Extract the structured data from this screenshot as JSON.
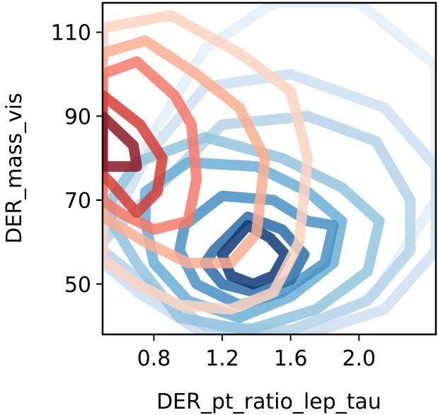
{
  "chart_data": {
    "type": "contour",
    "title": "",
    "xlabel": "DER_pt_ratio_lep_tau",
    "ylabel": "DER_mass_vis",
    "xlim": [
      0.5,
      2.45
    ],
    "ylim": [
      38,
      117
    ],
    "xticks": [
      {
        "value": 0.8,
        "label": "0.8"
      },
      {
        "value": 1.2,
        "label": "1.2"
      },
      {
        "value": 1.6,
        "label": "1.6"
      },
      {
        "value": 2.0,
        "label": "2.0"
      }
    ],
    "yticks": [
      {
        "value": 50,
        "label": "50"
      },
      {
        "value": 70,
        "label": "70"
      },
      {
        "value": 90,
        "label": "90"
      },
      {
        "value": 110,
        "label": "110"
      }
    ],
    "grid": false,
    "legend": "none",
    "series": [
      {
        "colormap": "Blues",
        "contours": [
          {
            "level": 1,
            "color": "#e4eef8",
            "points": [
              [
                0.5,
                62
              ],
              [
                0.8,
                86
              ],
              [
                1.1,
                106
              ],
              [
                1.5,
                117
              ],
              [
                2.0,
                117
              ],
              [
                2.45,
                102
              ],
              [
                2.45,
                70
              ],
              [
                2.1,
                48
              ],
              [
                1.7,
                38
              ],
              [
                1.1,
                38
              ],
              [
                0.7,
                48
              ],
              [
                0.5,
                55
              ]
            ]
          },
          {
            "level": 2,
            "color": "#cfe1f2",
            "points": [
              [
                0.5,
                60
              ],
              [
                0.75,
                80
              ],
              [
                1.1,
                97
              ],
              [
                1.6,
                100
              ],
              [
                2.15,
                92
              ],
              [
                2.45,
                78
              ],
              [
                2.45,
                58
              ],
              [
                2.15,
                44
              ],
              [
                1.7,
                38
              ],
              [
                1.1,
                38
              ],
              [
                0.75,
                47
              ],
              [
                0.5,
                55
              ]
            ]
          },
          {
            "level": 3,
            "color": "#b5d4e9",
            "points": [
              [
                0.5,
                60
              ],
              [
                0.75,
                70
              ],
              [
                1.2,
                88
              ],
              [
                1.7,
                90
              ],
              [
                2.1,
                84
              ],
              [
                2.3,
                70
              ],
              [
                2.3,
                58
              ],
              [
                2.05,
                46
              ],
              [
                1.6,
                39
              ],
              [
                1.1,
                40
              ],
              [
                0.75,
                50
              ],
              [
                0.5,
                58
              ]
            ]
          },
          {
            "level": 4,
            "color": "#93c4de",
            "points": [
              [
                0.55,
                70
              ],
              [
                0.7,
                79
              ],
              [
                1.1,
                85
              ],
              [
                1.55,
                80
              ],
              [
                1.9,
                73
              ],
              [
                2.12,
                65
              ],
              [
                2.05,
                53
              ],
              [
                1.75,
                44
              ],
              [
                1.35,
                39
              ],
              [
                0.95,
                42
              ],
              [
                0.7,
                55
              ],
              [
                0.55,
                65
              ]
            ]
          },
          {
            "level": 5,
            "color": "#6aaed6",
            "points": [
              [
                0.75,
                72
              ],
              [
                1.0,
                79
              ],
              [
                1.4,
                78
              ],
              [
                1.7,
                72
              ],
              [
                1.9,
                65
              ],
              [
                1.85,
                55
              ],
              [
                1.6,
                47
              ],
              [
                1.3,
                42
              ],
              [
                1.0,
                46
              ],
              [
                0.8,
                55
              ],
              [
                0.75,
                65
              ]
            ]
          },
          {
            "level": 6,
            "color": "#4a90c4",
            "points": [
              [
                0.98,
                64
              ],
              [
                1.2,
                71
              ],
              [
                1.5,
                70
              ],
              [
                1.7,
                65
              ],
              [
                1.85,
                64
              ],
              [
                1.8,
                55
              ],
              [
                1.55,
                48
              ],
              [
                1.3,
                45
              ],
              [
                1.05,
                50
              ],
              [
                0.95,
                58
              ]
            ]
          },
          {
            "level": 7,
            "color": "#2e6ca8",
            "points": [
              [
                1.15,
                58
              ],
              [
                1.35,
                66
              ],
              [
                1.55,
                63
              ],
              [
                1.68,
                57
              ],
              [
                1.6,
                51
              ],
              [
                1.4,
                48
              ],
              [
                1.2,
                50
              ],
              [
                1.1,
                55
              ]
            ]
          },
          {
            "level": 8,
            "color": "#0d3b73",
            "points": [
              [
                1.2,
                57
              ],
              [
                1.35,
                64
              ],
              [
                1.48,
                61
              ],
              [
                1.57,
                57
              ],
              [
                1.5,
                52
              ],
              [
                1.38,
                50
              ],
              [
                1.25,
                52
              ]
            ]
          }
        ]
      },
      {
        "colormap": "Reds",
        "contours": [
          {
            "level": 1,
            "color": "#fcd3c1",
            "points": [
              [
                0.5,
                111
              ],
              [
                0.9,
                114
              ],
              [
                1.3,
                105
              ],
              [
                1.6,
                96
              ],
              [
                1.7,
                80
              ],
              [
                1.65,
                60
              ],
              [
                1.5,
                48
              ],
              [
                1.25,
                44
              ],
              [
                0.95,
                45
              ],
              [
                0.7,
                50
              ],
              [
                0.5,
                56
              ]
            ]
          },
          {
            "level": 2,
            "color": "#fcae92",
            "points": [
              [
                0.5,
                105
              ],
              [
                0.75,
                108
              ],
              [
                1.05,
                100
              ],
              [
                1.3,
                92
              ],
              [
                1.45,
                80
              ],
              [
                1.4,
                62
              ],
              [
                1.25,
                55
              ],
              [
                1.0,
                55
              ],
              [
                0.75,
                60
              ],
              [
                0.5,
                66
              ]
            ]
          },
          {
            "level": 3,
            "color": "#f4796b",
            "points": [
              [
                0.5,
                100
              ],
              [
                0.7,
                103
              ],
              [
                0.92,
                95
              ],
              [
                1.02,
                88
              ],
              [
                1.05,
                75
              ],
              [
                1.0,
                65
              ],
              [
                0.8,
                63
              ],
              [
                0.6,
                67
              ],
              [
                0.5,
                70
              ]
            ]
          },
          {
            "level": 4,
            "color": "#d43d36",
            "points": [
              [
                0.5,
                95
              ],
              [
                0.72,
                88
              ],
              [
                0.85,
                80
              ],
              [
                0.82,
                72
              ],
              [
                0.7,
                67
              ],
              [
                0.55,
                74
              ],
              [
                0.5,
                76
              ]
            ]
          },
          {
            "level": 5,
            "color": "#8b1a24",
            "points": [
              [
                0.5,
                90
              ],
              [
                0.68,
                83
              ],
              [
                0.7,
                78
              ],
              [
                0.5,
                78
              ]
            ]
          }
        ]
      }
    ]
  }
}
